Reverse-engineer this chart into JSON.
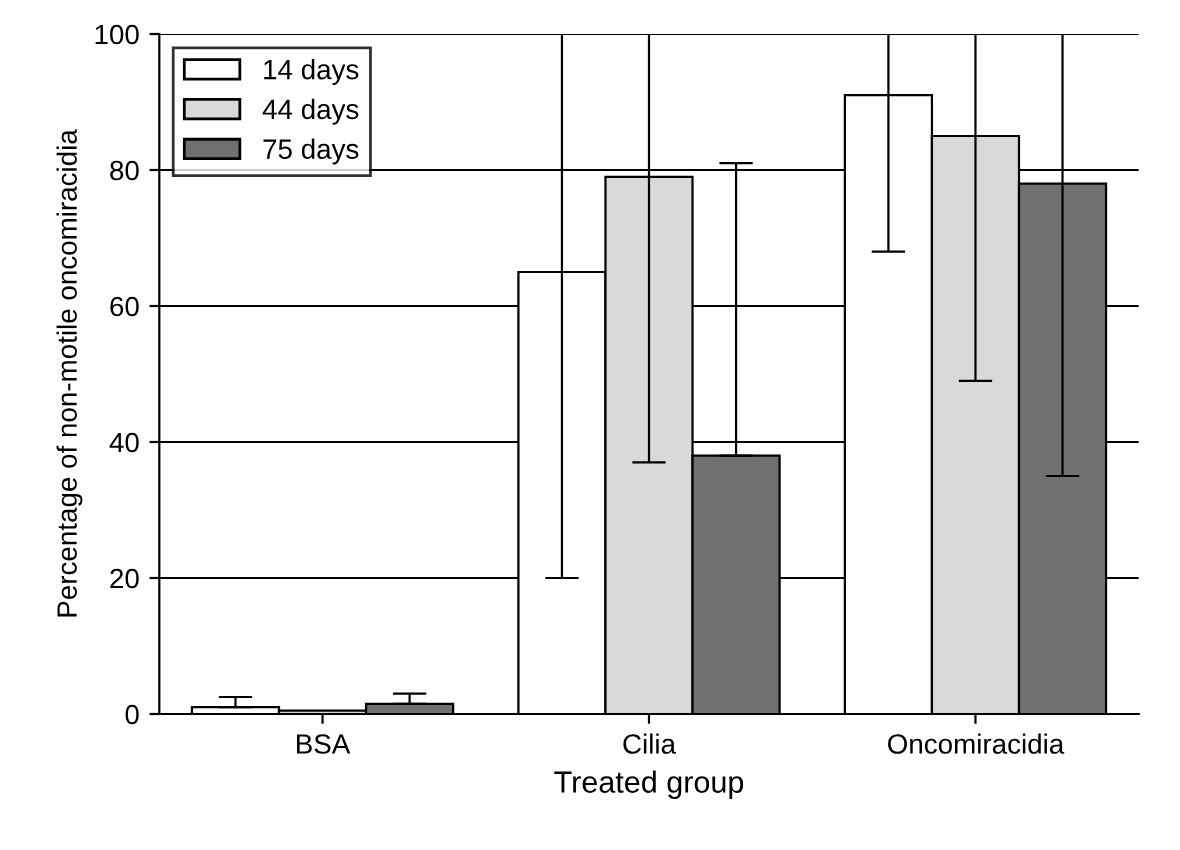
{
  "chart_data": {
    "type": "bar",
    "xlabel": "Treated group",
    "ylabel": "Percentage of non-motile oncomiracidia",
    "categories": [
      "BSA",
      "Cilia",
      "Oncomiracidia"
    ],
    "series": [
      {
        "name": "14 days",
        "color": "#ffffff",
        "values": [
          1,
          65,
          91
        ],
        "errors": [
          [
            1,
            2.5
          ],
          [
            20,
            100
          ],
          [
            68,
            100
          ]
        ]
      },
      {
        "name": "44 days",
        "color": "#d9d9d9",
        "values": [
          0.5,
          79,
          85
        ],
        "errors": [
          null,
          [
            37,
            100
          ],
          [
            49,
            100
          ]
        ]
      },
      {
        "name": "75 days",
        "color": "#707070",
        "values": [
          1.5,
          38,
          78
        ],
        "errors": [
          [
            1.5,
            3
          ],
          [
            38,
            81
          ],
          [
            35,
            100
          ]
        ]
      }
    ],
    "ylim": [
      0,
      100
    ],
    "yticks": [
      0,
      20,
      40,
      60,
      80,
      100
    ],
    "grid": "y",
    "legend": "top left"
  }
}
